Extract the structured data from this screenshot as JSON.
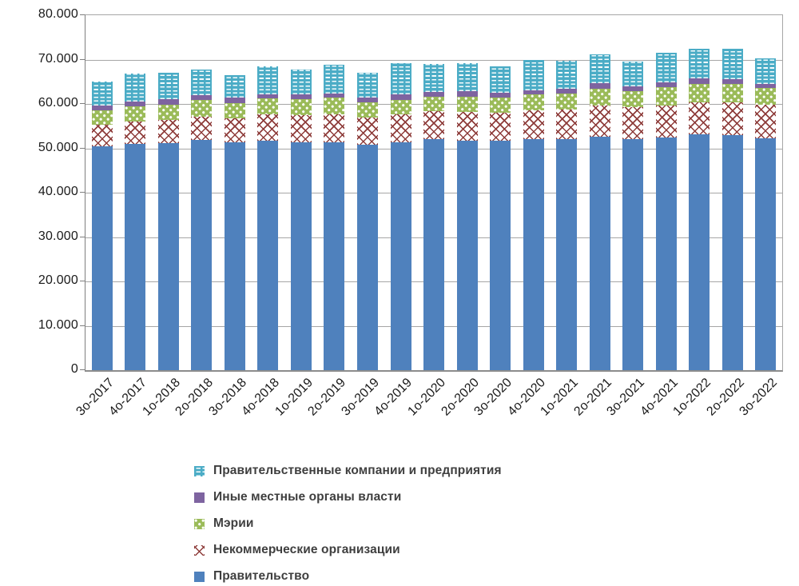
{
  "chart_data": {
    "type": "bar",
    "subtype": "stacked-vertical",
    "title": "",
    "xlabel": "",
    "ylabel": "",
    "ylim": [
      0,
      80000
    ],
    "grid": true,
    "y_ticks": [
      {
        "value": 80000,
        "label": "80.000"
      },
      {
        "value": 70000,
        "label": "70.000"
      },
      {
        "value": 60000,
        "label": "60.000"
      },
      {
        "value": 50000,
        "label": "50.000"
      },
      {
        "value": 40000,
        "label": "40.000"
      },
      {
        "value": 30000,
        "label": "30.000"
      },
      {
        "value": 20000,
        "label": "20.000"
      },
      {
        "value": 10000,
        "label": "10.000"
      },
      {
        "value": 0,
        "label": "0"
      }
    ],
    "categories": [
      "3о-2017",
      "4о-2017",
      "1о-2018",
      "2о-2018",
      "3о-2018",
      "4о-2018",
      "1о-2019",
      "2о-2019",
      "3о-2019",
      "4о-2019",
      "1о-2020",
      "2о-2020",
      "3о-2020",
      "4о-2020",
      "1о-2021",
      "2о-2021",
      "3о-2021",
      "4о-2021",
      "1о-2022",
      "2о-2022",
      "3о-2022"
    ],
    "series": [
      {
        "key": "gov",
        "name": "Правительство",
        "color": "#4F81BD",
        "pattern": "solid",
        "values": [
          50400,
          51000,
          51200,
          51900,
          51300,
          51800,
          51400,
          51300,
          50800,
          51400,
          52000,
          51800,
          51700,
          52000,
          52000,
          52700,
          52100,
          52500,
          53100,
          53000,
          52300
        ]
      },
      {
        "key": "nko",
        "name": "Некоммерческие организации",
        "color": "#8E3C3A",
        "pattern": "red-crosshatch-on-white",
        "values": [
          4900,
          5000,
          5200,
          5300,
          5500,
          5800,
          6000,
          6300,
          6200,
          6200,
          6300,
          6400,
          6400,
          6600,
          6800,
          7000,
          7100,
          7200,
          7300,
          7400,
          7500
        ]
      },
      {
        "key": "mayors",
        "name": "Мэрии",
        "color": "#9BBB59",
        "pattern": "white-dots-on-green",
        "values": [
          3200,
          3400,
          3500,
          3700,
          3400,
          3600,
          3600,
          3800,
          3300,
          3300,
          3400,
          3500,
          3400,
          3500,
          3500,
          3700,
          3700,
          4000,
          4100,
          4100,
          3800
        ]
      },
      {
        "key": "other_local",
        "name": "Иные местные органы власти",
        "color": "#8064A2",
        "pattern": "solid",
        "values": [
          1200,
          1100,
          1200,
          1100,
          1200,
          1000,
          1100,
          900,
          1200,
          1200,
          1000,
          1100,
          1000,
          1000,
          1100,
          1200,
          1000,
          1100,
          1200,
          1100,
          1000
        ]
      },
      {
        "key": "gov_companies",
        "name": "Правительственные компании и предприятия",
        "color": "#4BACC6",
        "pattern": "white-dashes-on-teal",
        "values": [
          5300,
          6300,
          5900,
          5700,
          5100,
          6300,
          5600,
          6600,
          5500,
          7100,
          6300,
          6400,
          5900,
          6800,
          6400,
          6600,
          5700,
          6700,
          6700,
          6800,
          5600
        ]
      }
    ],
    "stack_order_bottom_to_top": [
      "gov",
      "nko",
      "mayors",
      "other_local",
      "gov_companies"
    ],
    "legend_position": "bottom",
    "legend_order_top_to_bottom": [
      "gov_companies",
      "other_local",
      "mayors",
      "nko",
      "gov"
    ]
  },
  "layout_text": {}
}
